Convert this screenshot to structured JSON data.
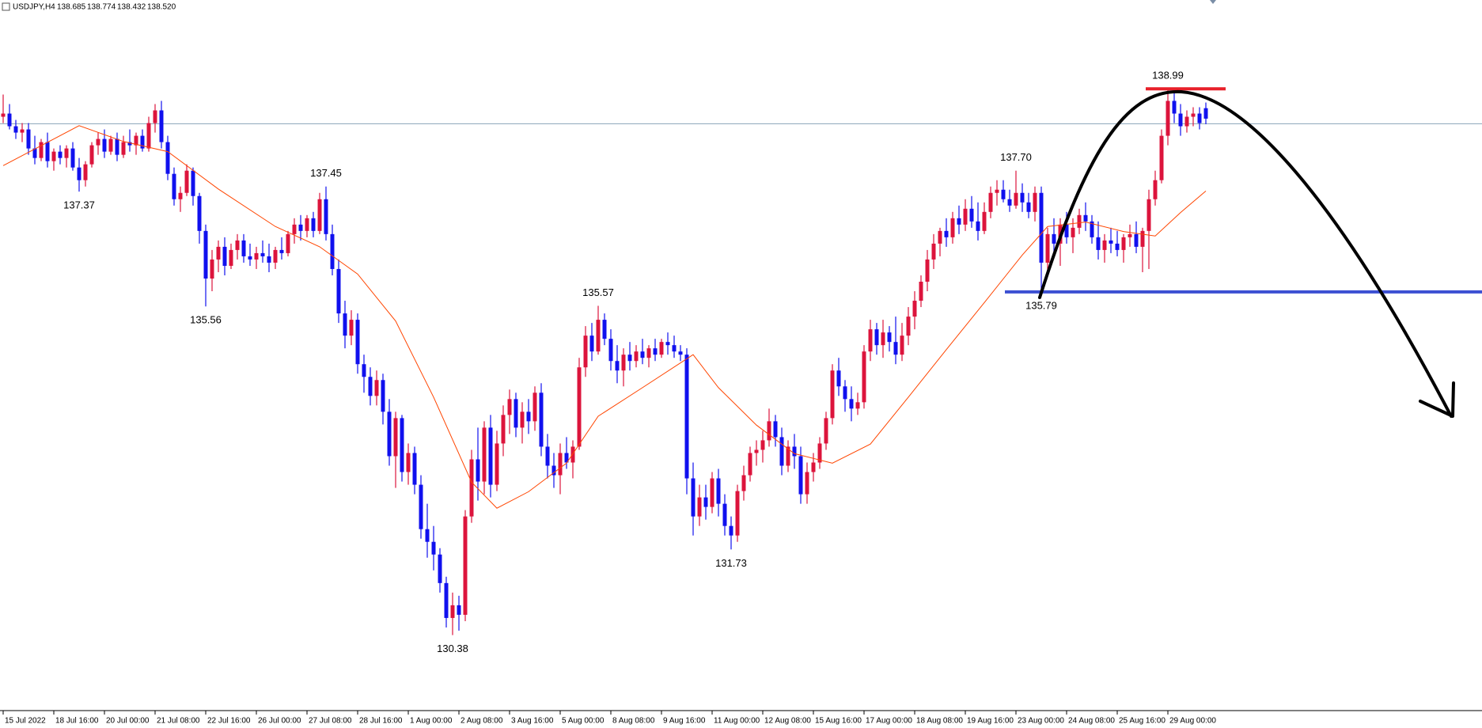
{
  "chart_data": {
    "type": "candlestick",
    "symbol": "USDJPY,H4",
    "header_values": [
      "138.685",
      "138.774",
      "138.432",
      "138.520"
    ],
    "up_color": "#dc143c",
    "down_color": "#1010ee",
    "ylim": [
      129.19,
      140.39
    ],
    "categories": [
      "15 Jul 2022",
      null,
      null,
      null,
      null,
      null,
      null,
      null,
      "18 Jul 16:00",
      null,
      null,
      null,
      null,
      null,
      null,
      null,
      "20 Jul 00:00",
      null,
      null,
      null,
      null,
      null,
      null,
      null,
      "21 Jul 08:00",
      null,
      null,
      null,
      null,
      null,
      null,
      null,
      "22 Jul 16:00",
      null,
      null,
      null,
      null,
      null,
      null,
      null,
      "26 Jul 00:00",
      null,
      null,
      null,
      null,
      null,
      null,
      null,
      "27 Jul 08:00",
      null,
      null,
      null,
      null,
      null,
      null,
      null,
      "28 Jul 16:00",
      null,
      null,
      null,
      null,
      null,
      null,
      null,
      "1 Aug 00:00",
      null,
      null,
      null,
      null,
      null,
      null,
      null,
      "2 Aug 08:00",
      null,
      null,
      null,
      null,
      null,
      null,
      null,
      "3 Aug 16:00",
      null,
      null,
      null,
      null,
      null,
      null,
      null,
      "5 Aug 00:00",
      null,
      null,
      null,
      null,
      null,
      null,
      null,
      "8 Aug 08:00",
      null,
      null,
      null,
      null,
      null,
      null,
      null,
      "9 Aug 16:00",
      null,
      null,
      null,
      null,
      null,
      null,
      null,
      "11 Aug 00:00",
      null,
      null,
      null,
      null,
      null,
      null,
      null,
      "12 Aug 08:00",
      null,
      null,
      null,
      null,
      null,
      null,
      null,
      "15 Aug 16:00",
      null,
      null,
      null,
      null,
      null,
      null,
      null,
      "17 Aug 00:00",
      null,
      null,
      null,
      null,
      null,
      null,
      null,
      "18 Aug 08:00",
      null,
      null,
      null,
      null,
      null,
      null,
      null,
      "19 Aug 16:00",
      null,
      null,
      null,
      null,
      null,
      null,
      null,
      "23 Aug 00:00",
      null,
      null,
      null,
      null,
      null,
      null,
      null,
      "24 Aug 08:00",
      null,
      null,
      null,
      null,
      null,
      null,
      null,
      "25 Aug 16:00",
      null,
      null,
      null,
      null,
      null,
      null,
      null,
      "29 Aug 00:00",
      null,
      null,
      null,
      null,
      null,
      null
    ],
    "candles": [
      [
        138.55,
        138.9,
        138.45,
        138.6
      ],
      [
        138.6,
        138.75,
        138.35,
        138.4
      ],
      [
        138.4,
        138.5,
        138.2,
        138.3
      ],
      [
        138.3,
        138.45,
        138.15,
        138.35
      ],
      [
        138.35,
        138.45,
        137.95,
        138.05
      ],
      [
        138.05,
        138.25,
        137.8,
        137.9
      ],
      [
        137.9,
        138.2,
        137.85,
        138.15
      ],
      [
        138.15,
        138.3,
        137.75,
        137.85
      ],
      [
        137.85,
        138.05,
        137.7,
        138.0
      ],
      [
        138.0,
        138.1,
        137.8,
        137.9
      ],
      [
        137.9,
        138.1,
        137.75,
        138.05
      ],
      [
        138.05,
        138.15,
        137.7,
        137.75
      ],
      [
        137.75,
        137.9,
        137.37,
        137.55
      ],
      [
        137.55,
        137.85,
        137.45,
        137.8
      ],
      [
        137.8,
        138.15,
        137.75,
        138.1
      ],
      [
        138.1,
        138.3,
        137.95,
        138.2
      ],
      [
        138.2,
        138.35,
        137.9,
        138.0
      ],
      [
        138.0,
        138.25,
        137.95,
        138.2
      ],
      [
        138.2,
        138.3,
        137.85,
        137.95
      ],
      [
        137.95,
        138.25,
        137.9,
        138.15
      ],
      [
        138.15,
        138.35,
        138.0,
        138.1
      ],
      [
        138.1,
        138.3,
        137.95,
        138.25
      ],
      [
        138.25,
        138.35,
        138.0,
        138.05
      ],
      [
        138.05,
        138.55,
        138.0,
        138.45
      ],
      [
        138.45,
        138.75,
        138.3,
        138.65
      ],
      [
        138.65,
        138.8,
        138.05,
        138.15
      ],
      [
        138.15,
        138.25,
        137.55,
        137.65
      ],
      [
        137.65,
        137.75,
        137.15,
        137.25
      ],
      [
        137.25,
        137.45,
        137.05,
        137.35
      ],
      [
        137.35,
        137.8,
        137.3,
        137.7
      ],
      [
        137.7,
        137.75,
        137.15,
        137.3
      ],
      [
        137.3,
        137.35,
        136.55,
        136.75
      ],
      [
        136.75,
        136.85,
        135.56,
        136.0
      ],
      [
        136.0,
        136.45,
        135.8,
        136.3
      ],
      [
        136.3,
        136.6,
        136.1,
        136.5
      ],
      [
        136.5,
        136.65,
        136.05,
        136.2
      ],
      [
        136.2,
        136.55,
        136.15,
        136.45
      ],
      [
        136.45,
        136.7,
        136.3,
        136.6
      ],
      [
        136.6,
        136.7,
        136.25,
        136.35
      ],
      [
        136.35,
        136.55,
        136.2,
        136.3
      ],
      [
        136.3,
        136.5,
        136.15,
        136.4
      ],
      [
        136.4,
        136.6,
        136.25,
        136.35
      ],
      [
        136.35,
        136.55,
        136.1,
        136.25
      ],
      [
        136.25,
        136.5,
        136.15,
        136.45
      ],
      [
        136.45,
        136.65,
        136.3,
        136.4
      ],
      [
        136.4,
        136.75,
        136.35,
        136.7
      ],
      [
        136.7,
        136.95,
        136.55,
        136.85
      ],
      [
        136.85,
        137.0,
        136.6,
        136.75
      ],
      [
        136.75,
        137.0,
        136.65,
        136.95
      ],
      [
        136.95,
        137.05,
        136.65,
        136.75
      ],
      [
        136.75,
        137.35,
        136.7,
        137.25
      ],
      [
        137.25,
        137.45,
        136.6,
        136.7
      ],
      [
        136.7,
        136.85,
        136.05,
        136.15
      ],
      [
        136.15,
        136.3,
        135.3,
        135.45
      ],
      [
        135.45,
        135.65,
        134.9,
        135.1
      ],
      [
        135.1,
        135.5,
        134.95,
        135.35
      ],
      [
        135.35,
        135.45,
        134.5,
        134.65
      ],
      [
        134.65,
        134.8,
        134.2,
        134.45
      ],
      [
        134.45,
        134.6,
        134.0,
        134.15
      ],
      [
        134.15,
        134.55,
        134.0,
        134.4
      ],
      [
        134.4,
        134.5,
        133.7,
        133.9
      ],
      [
        133.9,
        134.1,
        133.05,
        133.2
      ],
      [
        133.2,
        133.9,
        132.7,
        133.8
      ],
      [
        133.8,
        133.85,
        132.8,
        132.95
      ],
      [
        132.95,
        133.4,
        132.75,
        133.25
      ],
      [
        133.25,
        133.35,
        132.6,
        132.75
      ],
      [
        132.75,
        132.9,
        131.9,
        132.05
      ],
      [
        132.05,
        132.45,
        131.6,
        131.85
      ],
      [
        131.85,
        132.1,
        131.4,
        131.65
      ],
      [
        131.65,
        131.75,
        131.05,
        131.2
      ],
      [
        131.2,
        131.3,
        130.5,
        130.65
      ],
      [
        130.65,
        131.05,
        130.38,
        130.85
      ],
      [
        130.85,
        131.0,
        130.45,
        130.7
      ],
      [
        130.7,
        132.35,
        130.6,
        132.25
      ],
      [
        132.25,
        133.3,
        132.15,
        133.15
      ],
      [
        133.15,
        133.65,
        132.5,
        132.8
      ],
      [
        132.8,
        133.75,
        132.6,
        133.65
      ],
      [
        133.65,
        133.85,
        132.55,
        132.75
      ],
      [
        132.75,
        133.6,
        132.65,
        133.4
      ],
      [
        133.4,
        134.0,
        133.2,
        133.85
      ],
      [
        133.85,
        134.25,
        133.55,
        134.1
      ],
      [
        134.1,
        134.2,
        133.5,
        133.65
      ],
      [
        133.65,
        134.05,
        133.4,
        133.9
      ],
      [
        133.9,
        134.1,
        133.55,
        133.75
      ],
      [
        133.75,
        134.3,
        133.6,
        134.2
      ],
      [
        134.2,
        134.35,
        133.2,
        133.35
      ],
      [
        133.35,
        133.55,
        132.85,
        133.05
      ],
      [
        133.05,
        133.25,
        132.7,
        132.9
      ],
      [
        132.9,
        133.4,
        132.6,
        133.25
      ],
      [
        133.25,
        133.5,
        133.0,
        133.1
      ],
      [
        133.1,
        133.45,
        132.85,
        133.35
      ],
      [
        133.35,
        134.75,
        133.3,
        134.6
      ],
      [
        134.6,
        135.25,
        134.45,
        135.1
      ],
      [
        135.1,
        135.3,
        134.7,
        134.85
      ],
      [
        134.85,
        135.57,
        134.8,
        135.35
      ],
      [
        135.35,
        135.45,
        134.95,
        135.05
      ],
      [
        135.05,
        135.2,
        134.55,
        134.7
      ],
      [
        134.7,
        134.95,
        134.35,
        134.55
      ],
      [
        134.55,
        134.9,
        134.3,
        134.8
      ],
      [
        134.8,
        135.0,
        134.55,
        134.7
      ],
      [
        134.7,
        134.95,
        134.6,
        134.85
      ],
      [
        134.85,
        135.05,
        134.65,
        134.75
      ],
      [
        134.75,
        134.95,
        134.6,
        134.9
      ],
      [
        134.9,
        135.05,
        134.7,
        134.8
      ],
      [
        134.8,
        135.05,
        134.75,
        135.0
      ],
      [
        135.0,
        135.15,
        134.8,
        134.95
      ],
      [
        134.95,
        135.1,
        134.75,
        134.85
      ],
      [
        134.85,
        134.95,
        134.7,
        134.8
      ],
      [
        134.8,
        134.9,
        132.6,
        132.85
      ],
      [
        132.85,
        133.1,
        131.95,
        132.25
      ],
      [
        132.25,
        132.75,
        132.1,
        132.55
      ],
      [
        132.55,
        132.75,
        132.2,
        132.4
      ],
      [
        132.4,
        132.95,
        132.3,
        132.85
      ],
      [
        132.85,
        133.0,
        132.25,
        132.45
      ],
      [
        132.45,
        132.6,
        131.95,
        132.1
      ],
      [
        132.1,
        132.25,
        131.73,
        131.95
      ],
      [
        131.95,
        132.75,
        131.85,
        132.65
      ],
      [
        132.65,
        133.05,
        132.5,
        132.9
      ],
      [
        132.9,
        133.35,
        132.8,
        133.25
      ],
      [
        133.25,
        133.45,
        133.05,
        133.3
      ],
      [
        133.3,
        133.6,
        133.1,
        133.45
      ],
      [
        133.45,
        133.95,
        133.35,
        133.75
      ],
      [
        133.75,
        133.85,
        133.35,
        133.5
      ],
      [
        133.5,
        133.65,
        132.9,
        133.05
      ],
      [
        133.05,
        133.45,
        132.95,
        133.35
      ],
      [
        133.35,
        133.55,
        133.0,
        133.2
      ],
      [
        133.2,
        133.35,
        132.45,
        132.6
      ],
      [
        132.6,
        133.1,
        132.45,
        132.95
      ],
      [
        132.95,
        133.25,
        132.8,
        133.1
      ],
      [
        133.1,
        133.5,
        133.0,
        133.4
      ],
      [
        133.4,
        133.9,
        133.3,
        133.8
      ],
      [
        133.8,
        134.65,
        133.7,
        134.55
      ],
      [
        134.55,
        134.75,
        134.15,
        134.3
      ],
      [
        134.3,
        134.4,
        133.9,
        134.1
      ],
      [
        134.1,
        134.3,
        133.75,
        133.95
      ],
      [
        133.95,
        134.2,
        133.85,
        134.05
      ],
      [
        134.05,
        134.95,
        133.95,
        134.85
      ],
      [
        134.85,
        135.35,
        134.7,
        135.2
      ],
      [
        135.2,
        135.3,
        134.8,
        134.95
      ],
      [
        134.95,
        135.35,
        134.75,
        135.15
      ],
      [
        135.15,
        135.25,
        134.85,
        135.0
      ],
      [
        135.0,
        135.4,
        134.65,
        134.8
      ],
      [
        134.8,
        135.3,
        134.7,
        135.1
      ],
      [
        135.1,
        135.55,
        134.95,
        135.4
      ],
      [
        135.4,
        135.8,
        135.2,
        135.65
      ],
      [
        135.65,
        136.05,
        135.55,
        135.95
      ],
      [
        135.95,
        136.45,
        135.8,
        136.3
      ],
      [
        136.3,
        136.7,
        136.15,
        136.55
      ],
      [
        136.55,
        136.8,
        136.35,
        136.75
      ],
      [
        136.75,
        136.95,
        136.5,
        136.65
      ],
      [
        136.65,
        137.05,
        136.55,
        136.95
      ],
      [
        136.95,
        137.15,
        136.7,
        136.85
      ],
      [
        136.85,
        137.25,
        136.75,
        137.1
      ],
      [
        137.1,
        137.3,
        136.8,
        136.9
      ],
      [
        136.9,
        137.2,
        136.6,
        136.75
      ],
      [
        136.75,
        137.2,
        136.7,
        137.05
      ],
      [
        137.05,
        137.45,
        136.95,
        137.35
      ],
      [
        137.35,
        137.55,
        137.15,
        137.4
      ],
      [
        137.4,
        137.55,
        137.2,
        137.25
      ],
      [
        137.25,
        137.4,
        137.05,
        137.15
      ],
      [
        137.15,
        137.7,
        137.1,
        137.35
      ],
      [
        137.35,
        137.5,
        137.05,
        137.2
      ],
      [
        137.2,
        137.35,
        136.95,
        137.05
      ],
      [
        137.05,
        137.45,
        136.9,
        137.35
      ],
      [
        137.35,
        137.45,
        135.79,
        136.25
      ],
      [
        136.25,
        136.8,
        136.1,
        136.7
      ],
      [
        136.7,
        136.95,
        136.4,
        136.55
      ],
      [
        136.55,
        136.95,
        136.2,
        136.85
      ],
      [
        136.85,
        137.05,
        136.55,
        136.65
      ],
      [
        136.65,
        136.95,
        136.4,
        136.8
      ],
      [
        136.8,
        137.1,
        136.7,
        137.0
      ],
      [
        137.0,
        137.2,
        136.75,
        136.9
      ],
      [
        136.9,
        137.0,
        136.55,
        136.65
      ],
      [
        136.65,
        136.9,
        136.3,
        136.45
      ],
      [
        136.45,
        136.7,
        136.25,
        136.6
      ],
      [
        136.6,
        136.8,
        136.4,
        136.55
      ],
      [
        136.55,
        136.75,
        136.35,
        136.45
      ],
      [
        136.45,
        136.7,
        136.25,
        136.65
      ],
      [
        136.65,
        136.85,
        136.5,
        136.7
      ],
      [
        136.7,
        136.9,
        136.4,
        136.5
      ],
      [
        136.5,
        136.8,
        136.1,
        136.75
      ],
      [
        136.75,
        137.4,
        136.15,
        137.25
      ],
      [
        137.25,
        137.7,
        137.15,
        137.55
      ],
      [
        137.55,
        138.35,
        137.5,
        138.25
      ],
      [
        138.25,
        138.99,
        138.1,
        138.8
      ],
      [
        138.8,
        138.95,
        138.45,
        138.6
      ],
      [
        138.6,
        138.75,
        138.25,
        138.4
      ],
      [
        138.4,
        138.65,
        138.3,
        138.55
      ],
      [
        138.55,
        138.7,
        138.4,
        138.6
      ],
      [
        138.6,
        138.7,
        138.35,
        138.45
      ],
      [
        138.685,
        138.774,
        138.432,
        138.52
      ]
    ],
    "ma": {
      "color": "#ff4500",
      "x": [
        0,
        12,
        19,
        26,
        34,
        43,
        50,
        56,
        62,
        68,
        74,
        78,
        83,
        89,
        94,
        101,
        109,
        113,
        119,
        125,
        131,
        137,
        143,
        149,
        155,
        161,
        165,
        171,
        177,
        182,
        186,
        190
      ],
      "values": [
        137.78,
        138.41,
        138.16,
        138.0,
        137.41,
        136.82,
        136.5,
        136.07,
        135.33,
        134.13,
        132.79,
        132.38,
        132.64,
        133.09,
        133.83,
        134.28,
        134.8,
        134.28,
        133.69,
        133.24,
        133.09,
        133.39,
        134.13,
        134.88,
        135.62,
        136.37,
        136.82,
        136.89,
        136.74,
        136.67,
        137.04,
        137.38
      ]
    },
    "price_line": {
      "value": 138.44,
      "color": "#8aa2b8"
    },
    "levels": [
      {
        "value": 138.99,
        "color": "#e8202a"
      },
      {
        "value": 135.79,
        "color": "#3b4fd2"
      }
    ],
    "annotations": [
      {
        "label": "137.37",
        "value": 137.37,
        "index": 12
      },
      {
        "label": "135.56",
        "value": 135.56,
        "index": 32
      },
      {
        "label": "137.45",
        "value": 137.45,
        "index": 51
      },
      {
        "label": "130.38",
        "value": 130.38,
        "index": 71
      },
      {
        "label": "135.57",
        "value": 135.57,
        "index": 94
      },
      {
        "label": "131.73",
        "value": 131.73,
        "index": 115
      },
      {
        "label": "137.70",
        "value": 137.7,
        "index": 160
      },
      {
        "label": "135.79",
        "value": 135.79,
        "index": 164
      },
      {
        "label": "138.99",
        "value": 138.99,
        "index": 184
      }
    ]
  }
}
